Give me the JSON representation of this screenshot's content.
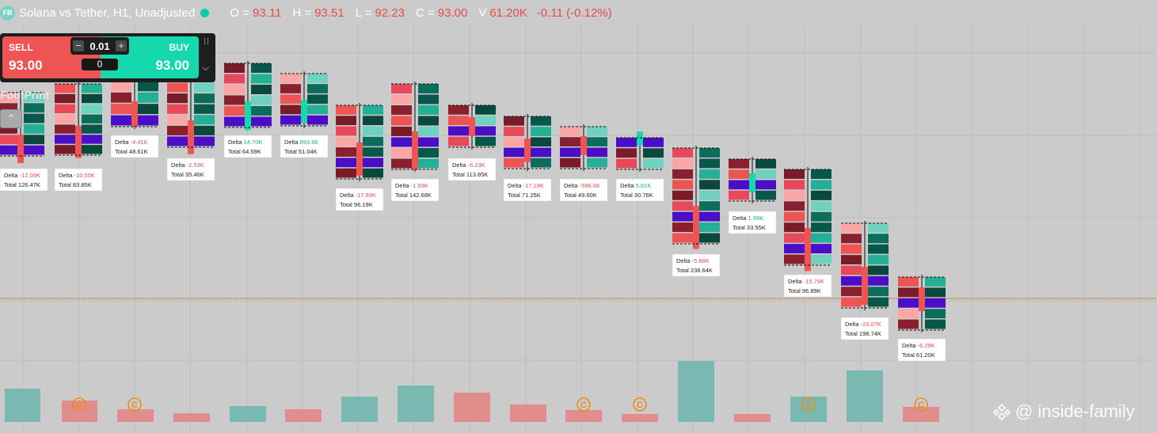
{
  "header": {
    "logo": "FB",
    "title": "Solana vs Tether, H1, Unadjusted",
    "status_color": "#0dc9a2",
    "ohlc": [
      {
        "label": "O =",
        "value": "93.11"
      },
      {
        "label": "H =",
        "value": "93.51"
      },
      {
        "label": "L =",
        "value": "92.23"
      },
      {
        "label": "C =",
        "value": "93.00"
      },
      {
        "label": "V",
        "value": "61.20K"
      }
    ],
    "change": "-0.11 (-0.12%)"
  },
  "trade_panel": {
    "sell_label": "SELL",
    "sell_price": "93.00",
    "buy_label": "BUY",
    "buy_price": "93.00",
    "quantity": "0.01",
    "spread": "0",
    "minus": "−",
    "plus": "+",
    "chevron": "⌵",
    "grip": "⁞⁞"
  },
  "indicator": {
    "label": "FootPrint",
    "collapse_icon": "chevron-up-icon",
    "collapse_glyph": "⌃"
  },
  "watermark": "@ inside-family",
  "chart_data": {
    "type": "footprint",
    "symbol": "Solana vs Tether",
    "interval": "H1",
    "current_price": 93.0,
    "colors": {
      "sell": "#ef5454",
      "buy": "#15d9ad",
      "poc": "#4b0ec6",
      "price_line": "#d4782d"
    },
    "bars": [
      {
        "delta": "-12.09K",
        "total": "126.47K"
      },
      {
        "delta": "-10.00K",
        "total": "83.85K"
      },
      {
        "delta": "-4.41K",
        "total": "48.61K"
      },
      {
        "delta": "-2.53K",
        "total": "35.46K"
      },
      {
        "delta": "14.70K",
        "total": "64.59K"
      },
      {
        "delta": "893.66",
        "total": "51.04K"
      },
      {
        "delta": "-17.69K",
        "total": "96.19K"
      },
      {
        "delta": "-1.93K",
        "total": "142.68K"
      },
      {
        "delta": "-6.23K",
        "total": "113.85K"
      },
      {
        "delta": "-17.19K",
        "total": "71.25K"
      },
      {
        "delta": "-598.68",
        "total": "49.60K"
      },
      {
        "delta": "5.61K",
        "total": "30.76K"
      },
      {
        "delta": "-5.88K",
        "total": "238.64K"
      },
      {
        "delta": "1.99K",
        "total": "33.55K"
      },
      {
        "delta": "-15.79K",
        "total": "96.89K"
      },
      {
        "delta": "-23.07K",
        "total": "198.74K"
      },
      {
        "delta": "-6.29K",
        "total": "61.20K"
      }
    ],
    "delta_label": "Delta",
    "total_label": "Total"
  }
}
